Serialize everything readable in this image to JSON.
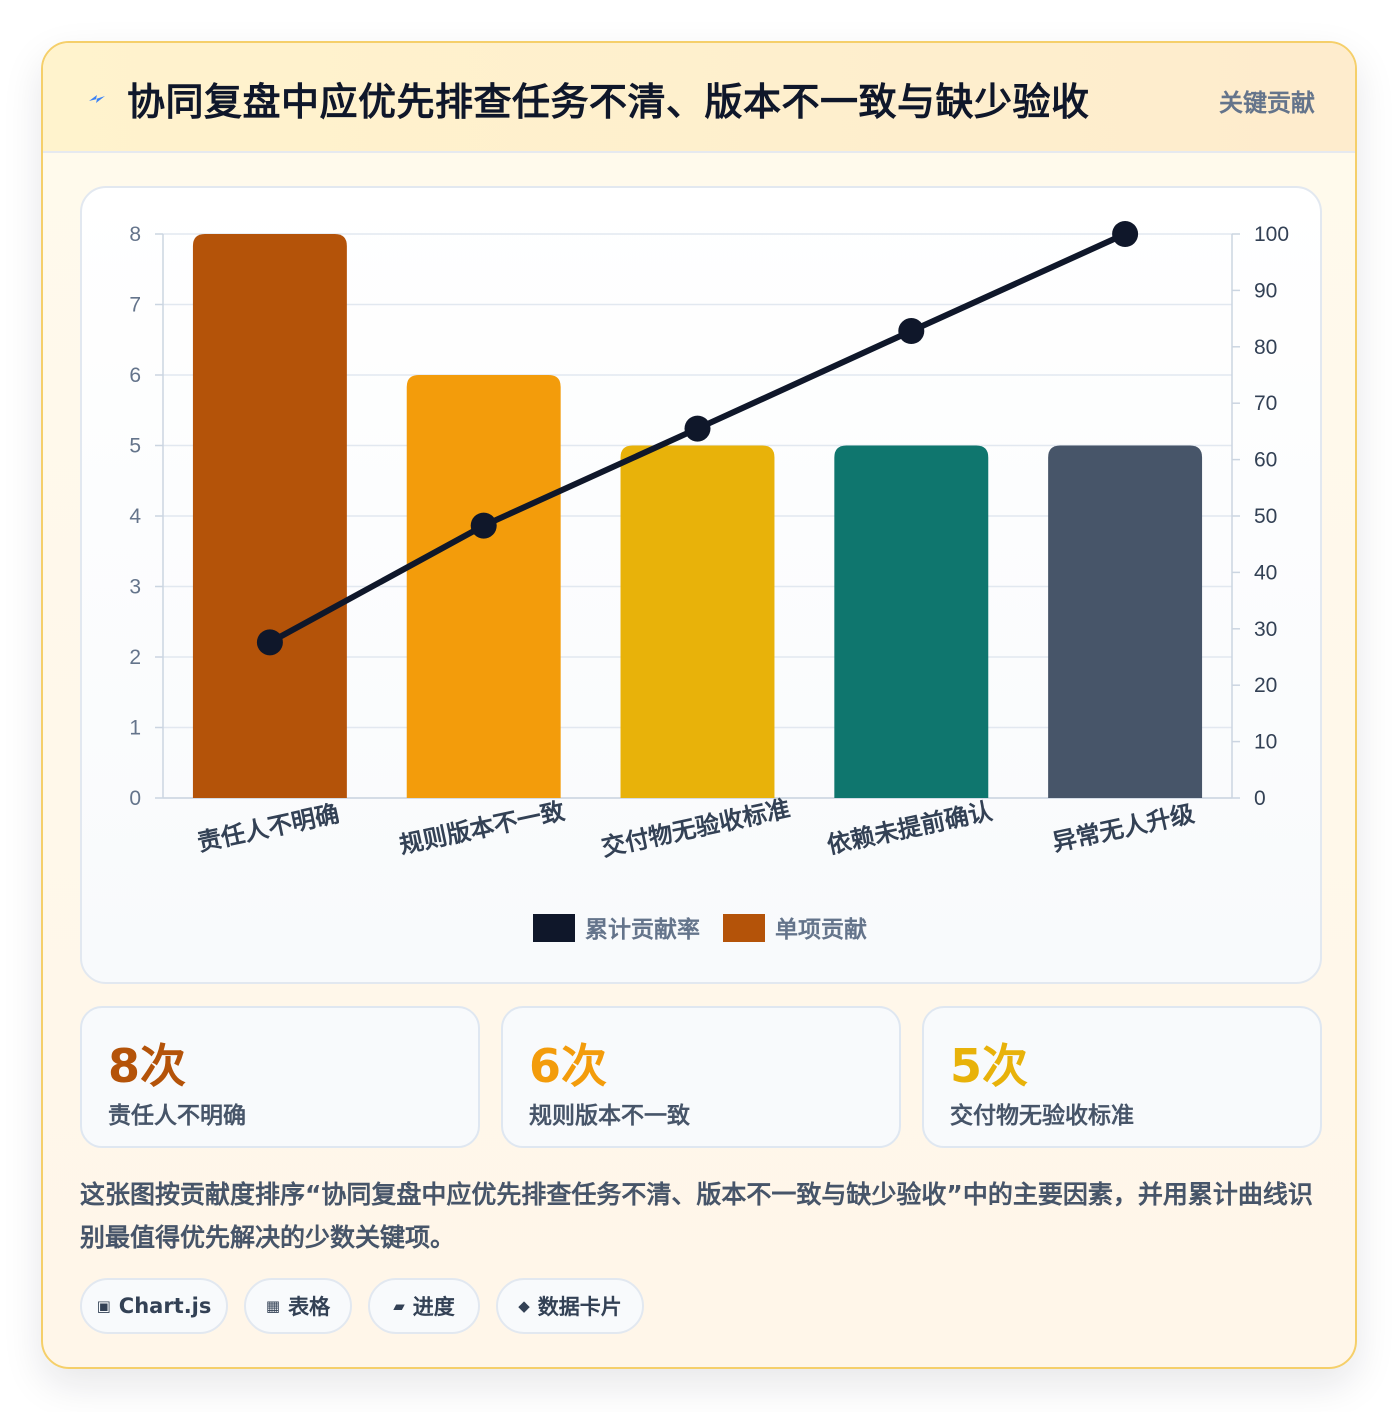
{
  "header": {
    "title": "协同复盘中应优先排查任务不清、版本不一致与缺少验收",
    "badge": "关键贡献",
    "icon": "lightning-icon"
  },
  "chart_data": {
    "type": "bar",
    "categories": [
      "责任人不明确",
      "规则版本不一致",
      "交付物无验收标准",
      "依赖未提前确认",
      "异常无人升级"
    ],
    "series": [
      {
        "name": "单项贡献",
        "type": "bar",
        "values": [
          8,
          6,
          5,
          5,
          5
        ],
        "axis": "left"
      },
      {
        "name": "累计贡献率",
        "type": "line",
        "values": [
          27.6,
          48.3,
          65.5,
          82.8,
          100
        ],
        "axis": "right"
      }
    ],
    "bar_colors": [
      "#b45309",
      "#f39c0b",
      "#e8b20a",
      "#0f766e",
      "#475569"
    ],
    "line_color": "#0f172a",
    "y_left": {
      "min": 0,
      "max": 8,
      "ticks": [
        "0",
        "1",
        "2",
        "3",
        "4",
        "5",
        "6",
        "7",
        "8"
      ]
    },
    "y_right": {
      "min": 0,
      "max": 100,
      "ticks": [
        "0",
        "10",
        "20",
        "30",
        "40",
        "50",
        "60",
        "70",
        "80",
        "90",
        "100"
      ]
    },
    "legend": {
      "position": "bottom",
      "items": [
        {
          "label": "累计贡献率",
          "color": "#0f172a"
        },
        {
          "label": "单项贡献",
          "color": "#b45309"
        }
      ]
    },
    "grid": true
  },
  "stats": [
    {
      "value": "8次",
      "label": "责任人不明确",
      "color": "#b45309"
    },
    {
      "value": "6次",
      "label": "规则版本不一致",
      "color": "#f39c0b"
    },
    {
      "value": "5次",
      "label": "交付物无验收标准",
      "color": "#e8b20a"
    }
  ],
  "description": "这张图按贡献度排序“协同复盘中应优先排查任务不清、版本不一致与缺少验收”中的主要因素，并用累计曲线识别最值得优先解决的少数关键项。",
  "tags": [
    {
      "icon": "▣",
      "label": "Chart.js"
    },
    {
      "icon": "▦",
      "label": "表格"
    },
    {
      "icon": "▰",
      "label": "进度"
    },
    {
      "icon": "◆",
      "label": "数据卡片"
    }
  ]
}
